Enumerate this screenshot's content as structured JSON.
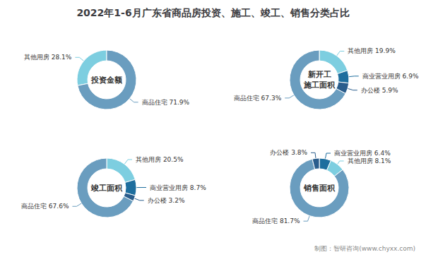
{
  "title": "2022年1-6月广东省商品房投资、施工、竣工、销售分类占比",
  "annotations": [
    "制图：智研咨询(www.chyxx.com)"
  ],
  "chart_data": [
    {
      "type": "pie",
      "title": "投资金额",
      "categories": [
        "其他用房",
        "商品住宅"
      ],
      "values": [
        28.1,
        71.9
      ],
      "value_labels": [
        "其他用房 28.1%",
        "商品住宅 71.9%"
      ],
      "colors": [
        "#7dcee0",
        "#6a9dbf"
      ],
      "data_labels": true
    },
    {
      "type": "pie",
      "title": "新开工\n施工面积",
      "categories": [
        "其他用房",
        "商业营业用房",
        "办公楼",
        "商品住宅"
      ],
      "values": [
        19.9,
        6.9,
        5.9,
        67.3
      ],
      "value_labels": [
        "其他用房 19.9%",
        "商业营业用房 6.9%",
        "办公楼 5.9%",
        "商品住宅 67.3%"
      ],
      "colors": [
        "#7dcee0",
        "#1e6e9e",
        "#2a5d8c",
        "#6a9dbf"
      ],
      "data_labels": true
    },
    {
      "type": "pie",
      "title": "竣工面积",
      "categories": [
        "其他用房",
        "商业营业用房",
        "办公楼",
        "商品住宅"
      ],
      "values": [
        20.5,
        8.7,
        3.2,
        67.6
      ],
      "value_labels": [
        "其他用房 20.5%",
        "商业营业用房 8.7%",
        "办公楼 3.2%",
        "商品住宅 67.6%"
      ],
      "colors": [
        "#7dcee0",
        "#1e6e9e",
        "#2a5d8c",
        "#6a9dbf"
      ],
      "data_labels": true
    },
    {
      "type": "pie",
      "title": "销售面积",
      "categories": [
        "商业营业用房",
        "其他用房",
        "商品住宅",
        "办公楼"
      ],
      "values": [
        6.4,
        8.1,
        81.7,
        3.8
      ],
      "value_labels": [
        "商业营业用房 6.4%",
        "其他用房 8.1%",
        "商品住宅 81.7%",
        "办公楼 3.8%"
      ],
      "colors": [
        "#1e6e9e",
        "#7dcee0",
        "#6a9dbf",
        "#2a5d8c"
      ],
      "data_labels": true
    }
  ]
}
